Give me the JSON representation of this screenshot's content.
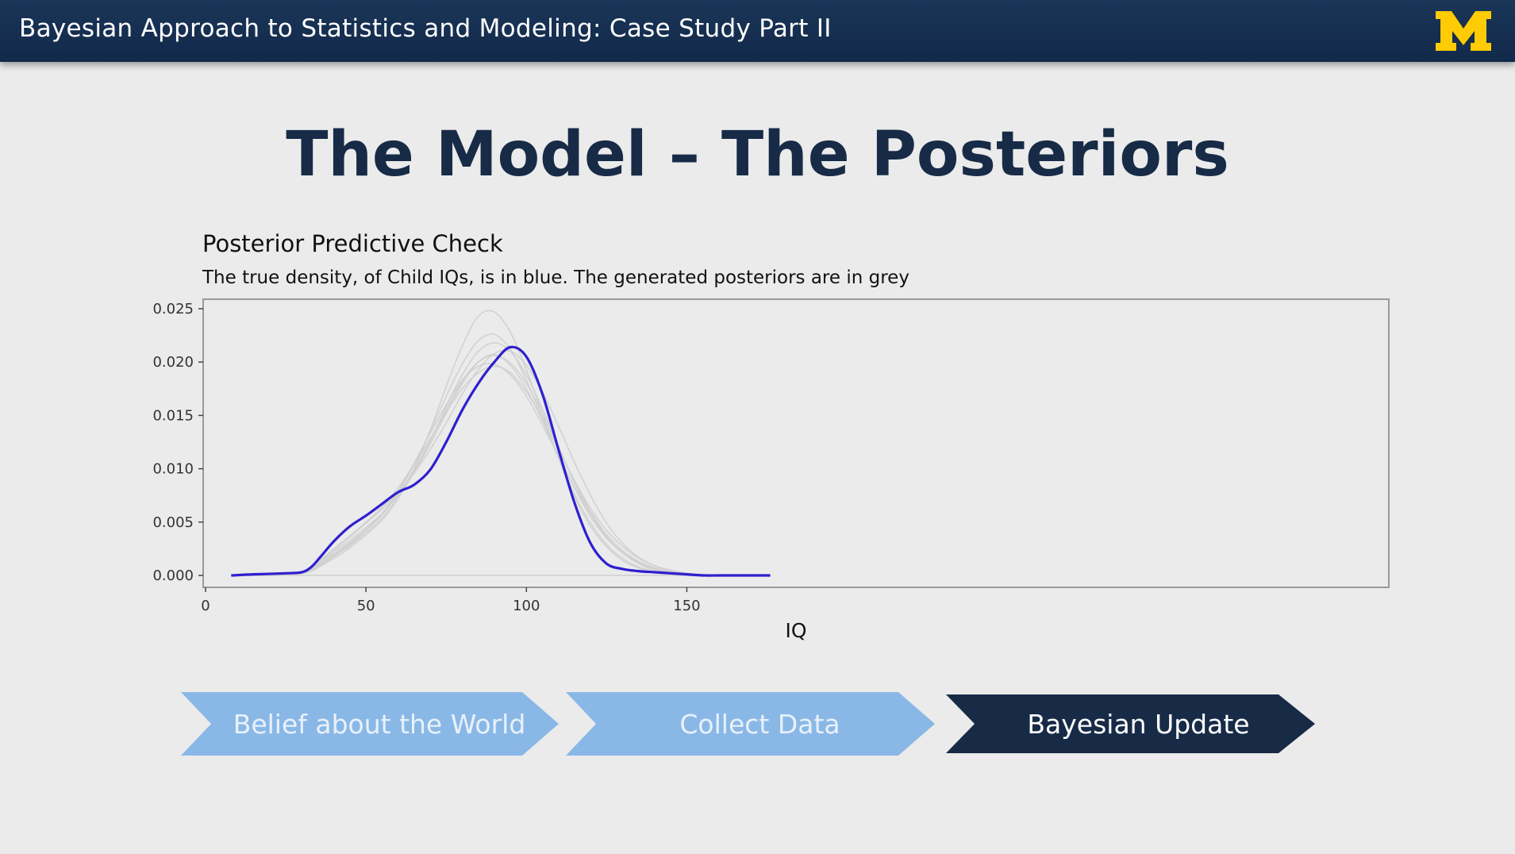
{
  "header": {
    "title": "Bayesian Approach to Statistics and Modeling: Case Study Part II",
    "logo_icon": "university-michigan-block-m-logo",
    "logo_color": "#ffcb05"
  },
  "slide": {
    "title": "The Model – The Posteriors"
  },
  "chart_data": {
    "type": "line",
    "title": "Posterior Predictive Check",
    "subtitle": "The true density, of Child IQs, is in blue. The generated posteriors are in grey",
    "xlabel": "IQ",
    "ylabel": "",
    "xlim": [
      0,
      185
    ],
    "ylim": [
      0,
      0.025
    ],
    "x_ticks": [
      0,
      50,
      100,
      150
    ],
    "x_tick_labels": [
      "0",
      "50",
      "100",
      "150"
    ],
    "y_ticks": [
      0,
      0.005,
      0.01,
      0.015,
      0.02,
      0.025
    ],
    "y_tick_labels": [
      "0.000",
      "0.005",
      "0.010",
      "0.015",
      "0.020",
      "0.025"
    ],
    "grid": false,
    "series": [
      {
        "color": "#2f1fcf",
        "x": [
          8,
          15,
          25,
          30,
          33,
          36,
          40,
          45,
          50,
          55,
          60,
          65,
          70,
          75,
          80,
          85,
          90,
          95,
          100,
          105,
          110,
          115,
          120,
          125,
          130,
          135,
          140,
          145,
          150,
          155,
          160,
          165,
          170,
          176
        ],
        "y": [
          0.0,
          0.0001,
          0.0002,
          0.0003,
          0.0008,
          0.0018,
          0.0032,
          0.0046,
          0.0056,
          0.0067,
          0.0078,
          0.0085,
          0.0099,
          0.0125,
          0.0155,
          0.018,
          0.02,
          0.0214,
          0.0205,
          0.017,
          0.0118,
          0.0068,
          0.003,
          0.0011,
          0.0006,
          0.0004,
          0.0003,
          0.0002,
          0.0001,
          0.0,
          0.0,
          0.0,
          0.0,
          0.0
        ]
      }
    ],
    "posterior_color": "#cfcfcf",
    "posterior_samples": [
      {
        "y": [
          0.0,
          0.0,
          0.0001,
          0.0003,
          0.0007,
          0.0013,
          0.0022,
          0.0033,
          0.0045,
          0.0058,
          0.0075,
          0.0097,
          0.0123,
          0.0152,
          0.018,
          0.02,
          0.0207,
          0.0197,
          0.0175,
          0.0145,
          0.0112,
          0.0082,
          0.0055,
          0.0035,
          0.0021,
          0.0012,
          0.0006,
          0.0003,
          0.0001,
          0.0,
          0.0,
          0.0,
          0.0,
          0.0
        ]
      },
      {
        "y": [
          0.0,
          0.0,
          0.0001,
          0.0002,
          0.0005,
          0.001,
          0.0018,
          0.0029,
          0.0042,
          0.0057,
          0.0078,
          0.0104,
          0.0135,
          0.0168,
          0.0198,
          0.022,
          0.0226,
          0.0212,
          0.0183,
          0.0147,
          0.011,
          0.0076,
          0.0049,
          0.0029,
          0.0016,
          0.0008,
          0.0004,
          0.0002,
          0.0001,
          0.0,
          0.0,
          0.0,
          0.0,
          0.0
        ]
      },
      {
        "y": [
          0.0,
          0.0,
          0.0001,
          0.0003,
          0.0008,
          0.0015,
          0.0025,
          0.0037,
          0.005,
          0.0064,
          0.0082,
          0.0104,
          0.0128,
          0.0153,
          0.0175,
          0.019,
          0.0196,
          0.019,
          0.0172,
          0.0147,
          0.0118,
          0.0089,
          0.0063,
          0.0042,
          0.0027,
          0.0016,
          0.0009,
          0.0005,
          0.0002,
          0.0001,
          0.0,
          0.0,
          0.0,
          0.0
        ]
      },
      {
        "y": [
          0.0,
          0.0,
          0.0001,
          0.0002,
          0.0004,
          0.0009,
          0.0016,
          0.0026,
          0.0038,
          0.0052,
          0.0072,
          0.01,
          0.0136,
          0.0177,
          0.0215,
          0.0243,
          0.0247,
          0.0228,
          0.0193,
          0.0151,
          0.011,
          0.0074,
          0.0046,
          0.0027,
          0.0014,
          0.0007,
          0.0003,
          0.0001,
          0.0,
          0.0,
          0.0,
          0.0,
          0.0,
          0.0
        ]
      },
      {
        "y": [
          0.0,
          0.0,
          0.0001,
          0.0003,
          0.0006,
          0.0012,
          0.002,
          0.0031,
          0.0043,
          0.0057,
          0.0076,
          0.0099,
          0.0126,
          0.0155,
          0.0182,
          0.02,
          0.0206,
          0.0199,
          0.018,
          0.0152,
          0.012,
          0.0088,
          0.006,
          0.0038,
          0.0023,
          0.0013,
          0.0007,
          0.0003,
          0.0001,
          0.0,
          0.0,
          0.0,
          0.0,
          0.0
        ]
      },
      {
        "y": [
          0.0,
          0.0,
          0.0001,
          0.0002,
          0.0005,
          0.0011,
          0.0019,
          0.003,
          0.0043,
          0.0058,
          0.0079,
          0.0105,
          0.0133,
          0.016,
          0.0183,
          0.0196,
          0.0198,
          0.0188,
          0.0168,
          0.0141,
          0.0112,
          0.0083,
          0.0058,
          0.0038,
          0.0023,
          0.0013,
          0.0007,
          0.0003,
          0.0001,
          0.0,
          0.0,
          0.0,
          0.0,
          0.0
        ]
      },
      {
        "y": [
          0.0,
          0.0,
          0.0001,
          0.0003,
          0.0007,
          0.0014,
          0.0024,
          0.0036,
          0.0049,
          0.0062,
          0.0078,
          0.0096,
          0.0118,
          0.0143,
          0.017,
          0.0193,
          0.0208,
          0.021,
          0.0197,
          0.0172,
          0.014,
          0.0106,
          0.0075,
          0.0049,
          0.003,
          0.0017,
          0.0009,
          0.0004,
          0.0002,
          0.0001,
          0.0,
          0.0,
          0.0,
          0.0
        ]
      },
      {
        "y": [
          0.0,
          0.0,
          0.0001,
          0.0002,
          0.0005,
          0.001,
          0.0018,
          0.0028,
          0.004,
          0.0054,
          0.0073,
          0.0097,
          0.0126,
          0.0158,
          0.0188,
          0.021,
          0.0218,
          0.021,
          0.0188,
          0.0156,
          0.0121,
          0.0087,
          0.0058,
          0.0036,
          0.0021,
          0.0011,
          0.0005,
          0.0002,
          0.0001,
          0.0,
          0.0,
          0.0,
          0.0,
          0.0
        ]
      }
    ]
  },
  "flow": {
    "steps": [
      {
        "label": "Belief about the World",
        "fill": "#8ab8e6",
        "text_color": "#e8f1fb"
      },
      {
        "label": "Collect Data",
        "fill": "#8ab8e6",
        "text_color": "#e8f1fb"
      },
      {
        "label": "Bayesian Update",
        "fill": "#172b47",
        "text_color": "#ffffff"
      }
    ]
  }
}
